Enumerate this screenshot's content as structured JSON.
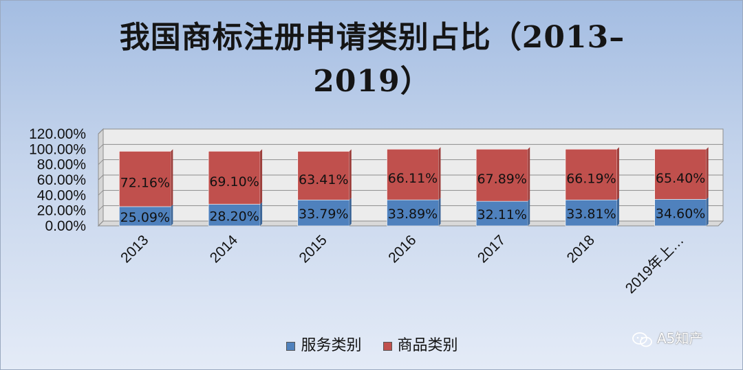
{
  "chart_data": {
    "type": "stacked-bar",
    "title": "我国商标注册申请类别占比（2013–2019）",
    "title_lines": [
      "我国商标注册申请类别占比（2013–",
      "2019）"
    ],
    "categories": [
      "2013",
      "2014",
      "2015",
      "2016",
      "2017",
      "2018",
      "2019年上…"
    ],
    "series": [
      {
        "name": "服务类别",
        "color": "#4f81bd",
        "values": [
          25.09,
          28.2,
          33.79,
          33.89,
          32.11,
          33.81,
          34.6
        ],
        "labels": [
          "25.09%",
          "28.20%",
          "33.79%",
          "33.89%",
          "32.11%",
          "33.81%",
          "34.60%"
        ]
      },
      {
        "name": "商品类别",
        "color": "#c0504d",
        "values": [
          72.16,
          69.1,
          63.41,
          66.11,
          67.89,
          66.19,
          65.4
        ],
        "labels": [
          "72.16%",
          "69.10%",
          "63.41%",
          "66.11%",
          "67.89%",
          "66.19%",
          "65.40%"
        ]
      }
    ],
    "ylim": [
      0,
      120
    ],
    "yticks": [
      "0.00%",
      "20.00%",
      "40.00%",
      "60.00%",
      "80.00%",
      "100.00%",
      "120.00%"
    ],
    "ytick_values": [
      0,
      20,
      40,
      60,
      80,
      100,
      120
    ],
    "grid": true,
    "legend_position": "bottom"
  },
  "watermark": {
    "text": "A5知产",
    "icon": "wechat-icon"
  }
}
